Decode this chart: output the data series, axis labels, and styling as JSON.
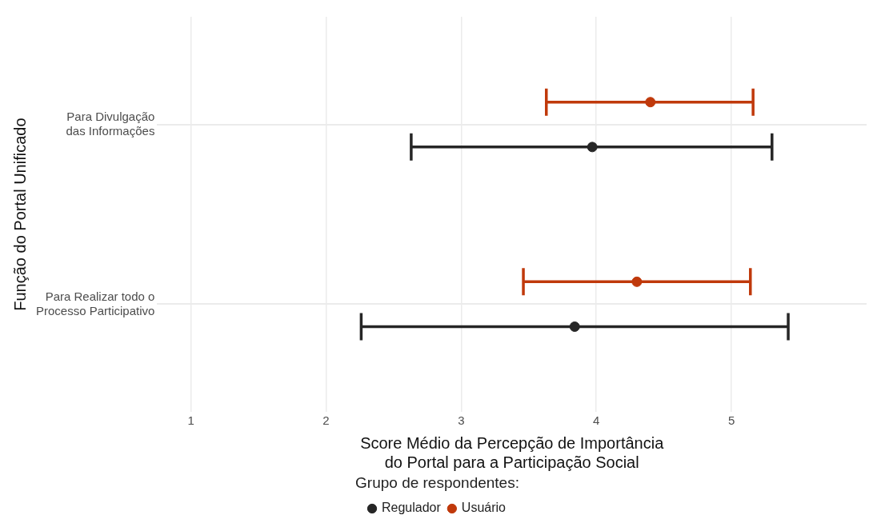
{
  "chart_data": {
    "type": "scatter",
    "orientation": "horizontal",
    "xlabel": "Score Médio da Percepção de Importância\ndo Portal para a Participação Social",
    "ylabel": "Função do Portal Unificado",
    "legend_title": "Grupo de respondentes:",
    "categories": [
      "Para Divulgação\ndas Informações",
      "Para Realizar todo o\nProcesso Participativo"
    ],
    "series": [
      {
        "name": "Regulador",
        "color": "#262626",
        "values": [
          3.97,
          3.84
        ],
        "errors": [
          [
            2.63,
            5.3
          ],
          [
            2.26,
            5.42
          ]
        ]
      },
      {
        "name": "Usuário",
        "color": "#c0390b",
        "values": [
          4.4,
          4.3
        ],
        "errors": [
          [
            3.63,
            5.16
          ],
          [
            3.46,
            5.14
          ]
        ]
      }
    ],
    "xlim": [
      0.75,
      6.0
    ],
    "xticks": [
      1,
      2,
      3,
      4,
      5
    ],
    "grid": true,
    "legend": "bottom",
    "marker": "circle"
  }
}
